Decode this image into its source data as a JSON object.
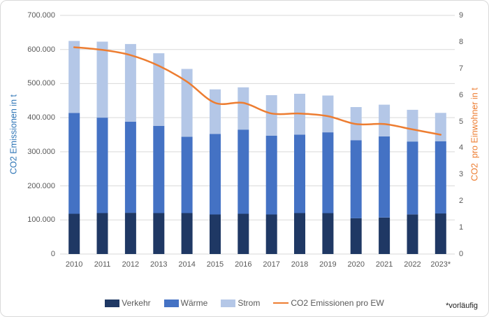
{
  "frame": {
    "border_color": "#D9D9D9",
    "background": "#FFFFFF"
  },
  "chart_data": {
    "type": "bar",
    "subtype": "stacked-column-with-secondary-axis-line",
    "categories": [
      "2010",
      "2011",
      "2012",
      "2013",
      "2014",
      "2015",
      "2016",
      "2017",
      "2018",
      "2019",
      "2020",
      "2021",
      "2022",
      "2023*"
    ],
    "series": [
      {
        "name": "Verkehr",
        "kind": "bar",
        "axis": "left",
        "color": "#1F3864",
        "values": [
          118000,
          120000,
          121000,
          120000,
          120000,
          116000,
          118000,
          116000,
          120000,
          120000,
          105000,
          107000,
          116000,
          119000
        ]
      },
      {
        "name": "Wärme",
        "kind": "bar",
        "axis": "left",
        "color": "#4472C4",
        "values": [
          296000,
          280000,
          267000,
          256000,
          224000,
          236000,
          247000,
          231000,
          230000,
          237000,
          229000,
          238000,
          214000,
          212000
        ]
      },
      {
        "name": "Strom",
        "kind": "bar",
        "axis": "left",
        "color": "#B4C7E7",
        "values": [
          211000,
          223000,
          228000,
          213000,
          199000,
          131000,
          124000,
          119000,
          120000,
          108000,
          97000,
          93000,
          93000,
          83000
        ]
      },
      {
        "name": "CO2 Emissionen pro EW",
        "kind": "line",
        "axis": "right",
        "color": "#ED7D31",
        "values": [
          7.8,
          7.7,
          7.5,
          7.1,
          6.5,
          5.7,
          5.7,
          5.3,
          5.3,
          5.2,
          4.9,
          4.9,
          4.7,
          4.5
        ]
      }
    ],
    "stacked": true,
    "left_axis": {
      "title": "CO2 Emissionen in t",
      "title_color": "#2E75B6",
      "min": 0,
      "max": 700000,
      "tick_labels": [
        "0",
        "100.000",
        "200.000",
        "300.000",
        "400.000",
        "500.000",
        "600.000",
        "700.000"
      ]
    },
    "right_axis": {
      "title": "CO2  pro Einwohner in t",
      "title_color": "#ED7D31",
      "min": 0,
      "max": 9,
      "tick_labels": [
        "0",
        "1",
        "2",
        "3",
        "4",
        "5",
        "6",
        "7",
        "8",
        "9"
      ]
    },
    "grid": true,
    "grid_color": "#D9D9D9",
    "tick_color": "#595959",
    "legend_position": "bottom",
    "footnote": "*vorläufig"
  }
}
